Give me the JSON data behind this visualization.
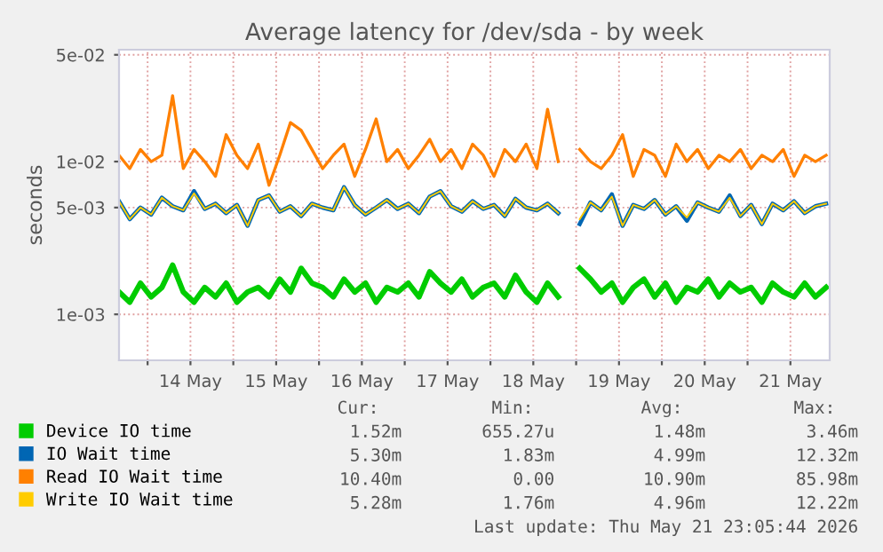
{
  "chart_data": {
    "type": "line",
    "title": "Average latency for /dev/sda - by week",
    "ylabel": "seconds",
    "log": "y",
    "ylim": [
      0.0005,
      0.054
    ],
    "yticks": [
      {
        "value": 0.05,
        "label": "5e-02"
      },
      {
        "value": 0.01,
        "label": "1e-02"
      },
      {
        "value": 0.005,
        "label": "5e-03"
      },
      {
        "value": 0.001,
        "label": "1e-03"
      }
    ],
    "xlim": [
      "2026-05-13T16:00",
      "2026-05-21T23:00"
    ],
    "xticks": [
      {
        "value": "2026-05-14T00:00",
        "label": null
      },
      {
        "value": "2026-05-14T12:00",
        "label": "14 May"
      },
      {
        "value": "2026-05-15T00:00",
        "label": null
      },
      {
        "value": "2026-05-15T12:00",
        "label": "15 May"
      },
      {
        "value": "2026-05-16T00:00",
        "label": null
      },
      {
        "value": "2026-05-16T12:00",
        "label": "16 May"
      },
      {
        "value": "2026-05-17T00:00",
        "label": null
      },
      {
        "value": "2026-05-17T12:00",
        "label": "17 May"
      },
      {
        "value": "2026-05-18T00:00",
        "label": null
      },
      {
        "value": "2026-05-18T12:00",
        "label": "18 May"
      },
      {
        "value": "2026-05-19T00:00",
        "label": null
      },
      {
        "value": "2026-05-19T12:00",
        "label": "19 May"
      },
      {
        "value": "2026-05-20T00:00",
        "label": null
      },
      {
        "value": "2026-05-20T12:00",
        "label": "20 May"
      },
      {
        "value": "2026-05-21T00:00",
        "label": null
      },
      {
        "value": "2026-05-21T12:00",
        "label": "21 May"
      }
    ],
    "x": [
      "2026-05-13T16:00",
      "2026-05-13T19:00",
      "2026-05-13T22:00",
      "2026-05-14T01:00",
      "2026-05-14T04:00",
      "2026-05-14T07:00",
      "2026-05-14T10:00",
      "2026-05-14T13:00",
      "2026-05-14T16:00",
      "2026-05-14T19:00",
      "2026-05-14T22:00",
      "2026-05-15T01:00",
      "2026-05-15T04:00",
      "2026-05-15T07:00",
      "2026-05-15T10:00",
      "2026-05-15T13:00",
      "2026-05-15T16:00",
      "2026-05-15T19:00",
      "2026-05-15T22:00",
      "2026-05-16T01:00",
      "2026-05-16T04:00",
      "2026-05-16T07:00",
      "2026-05-16T10:00",
      "2026-05-16T13:00",
      "2026-05-16T16:00",
      "2026-05-16T19:00",
      "2026-05-16T22:00",
      "2026-05-17T01:00",
      "2026-05-17T04:00",
      "2026-05-17T07:00",
      "2026-05-17T10:00",
      "2026-05-17T13:00",
      "2026-05-17T16:00",
      "2026-05-17T19:00",
      "2026-05-17T22:00",
      "2026-05-18T01:00",
      "2026-05-18T04:00",
      "2026-05-18T07:00",
      "2026-05-18T10:00",
      "2026-05-18T13:00",
      "2026-05-18T16:00",
      "2026-05-18T19:00",
      "2026-05-18T22:00",
      "2026-05-19T01:00",
      "2026-05-19T04:00",
      "2026-05-19T07:00",
      "2026-05-19T10:00",
      "2026-05-19T13:00",
      "2026-05-19T16:00",
      "2026-05-19T19:00",
      "2026-05-19T22:00",
      "2026-05-20T01:00",
      "2026-05-20T04:00",
      "2026-05-20T07:00",
      "2026-05-20T10:00",
      "2026-05-20T13:00",
      "2026-05-20T16:00",
      "2026-05-20T19:00",
      "2026-05-20T22:00",
      "2026-05-21T01:00",
      "2026-05-21T04:00",
      "2026-05-21T07:00",
      "2026-05-21T10:00",
      "2026-05-21T13:00",
      "2026-05-21T16:00",
      "2026-05-21T19:00",
      "2026-05-21T22:00"
    ],
    "series": [
      {
        "name": "Device IO time",
        "color": "#00cc00",
        "values": [
          0.0014,
          0.0012,
          0.0016,
          0.0013,
          0.0015,
          0.0021,
          0.0014,
          0.0012,
          0.0015,
          0.0013,
          0.0016,
          0.0012,
          0.0014,
          0.0015,
          0.0013,
          0.0017,
          0.0014,
          0.002,
          0.0016,
          0.0015,
          0.0013,
          0.0017,
          0.0014,
          0.0016,
          0.0012,
          0.0015,
          0.0014,
          0.0016,
          0.0013,
          0.0019,
          0.0016,
          0.0014,
          0.0017,
          0.0013,
          0.0015,
          0.0016,
          0.0013,
          0.0018,
          0.0014,
          0.0012,
          0.0016,
          0.0013,
          null,
          0.002,
          0.0017,
          0.0014,
          0.0016,
          0.0012,
          0.0015,
          0.0017,
          0.0013,
          0.0016,
          0.0012,
          0.0015,
          0.0014,
          0.0017,
          0.0013,
          0.0016,
          0.0014,
          0.0015,
          0.0012,
          0.0016,
          0.0014,
          0.0013,
          0.0016,
          0.0013,
          0.0015
        ]
      },
      {
        "name": "IO Wait time",
        "color": "#0066b3",
        "values": [
          0.0055,
          0.0042,
          0.005,
          0.0045,
          0.0058,
          0.0051,
          0.0048,
          0.0064,
          0.0049,
          0.0053,
          0.0046,
          0.0052,
          0.0038,
          0.0056,
          0.006,
          0.0047,
          0.0051,
          0.0044,
          0.0053,
          0.005,
          0.0048,
          0.0068,
          0.0052,
          0.0045,
          0.005,
          0.0056,
          0.0049,
          0.0053,
          0.0046,
          0.0059,
          0.0064,
          0.0051,
          0.0047,
          0.0055,
          0.0049,
          0.0052,
          0.0044,
          0.0057,
          0.005,
          0.0048,
          0.0053,
          0.0046,
          null,
          0.0039,
          0.0054,
          0.0048,
          0.0061,
          0.0038,
          0.0052,
          0.0049,
          0.0056,
          0.0045,
          0.0051,
          0.0041,
          0.0054,
          0.005,
          0.0047,
          0.006,
          0.0044,
          0.0052,
          0.0039,
          0.0053,
          0.0048,
          0.0055,
          0.0046,
          0.0051,
          0.0053
        ]
      },
      {
        "name": "Read IO Wait time",
        "color": "#ff8000",
        "values": [
          0.011,
          0.009,
          0.012,
          0.01,
          0.011,
          0.027,
          0.009,
          0.012,
          0.01,
          0.008,
          0.015,
          0.011,
          0.009,
          0.013,
          0.007,
          0.011,
          0.018,
          0.016,
          0.012,
          0.009,
          0.011,
          0.013,
          0.008,
          0.012,
          0.019,
          0.01,
          0.012,
          0.009,
          0.011,
          0.014,
          0.01,
          0.012,
          0.009,
          0.013,
          0.011,
          0.008,
          0.012,
          0.01,
          0.013,
          0.009,
          0.022,
          0.01,
          null,
          0.012,
          0.01,
          0.009,
          0.011,
          0.015,
          0.008,
          0.012,
          0.011,
          0.008,
          0.013,
          0.01,
          0.012,
          0.009,
          0.011,
          0.01,
          0.012,
          0.009,
          0.011,
          0.01,
          0.012,
          0.008,
          0.011,
          0.01,
          0.011
        ]
      },
      {
        "name": "Write IO Wait time",
        "color": "#ffcc00",
        "values": [
          0.0055,
          0.0042,
          0.005,
          0.0045,
          0.0058,
          0.0051,
          0.0048,
          0.0062,
          0.0049,
          0.0053,
          0.0046,
          0.0052,
          0.0038,
          0.0056,
          0.006,
          0.0047,
          0.0051,
          0.0044,
          0.0053,
          0.005,
          0.0048,
          0.0068,
          0.0052,
          0.0045,
          0.005,
          0.0056,
          0.0049,
          0.0053,
          0.0046,
          0.0059,
          0.0064,
          0.0051,
          0.0047,
          0.0055,
          0.0049,
          0.0052,
          0.0044,
          0.0057,
          0.005,
          0.0048,
          0.0053,
          0.0046,
          null,
          0.0042,
          0.0054,
          0.0048,
          0.0059,
          0.0038,
          0.0052,
          0.0049,
          0.0056,
          0.0045,
          0.0051,
          0.0043,
          0.0054,
          0.005,
          0.0047,
          0.0058,
          0.0044,
          0.0052,
          0.0039,
          0.0053,
          0.0048,
          0.0055,
          0.0046,
          0.0051,
          0.0053
        ]
      }
    ],
    "grid": true,
    "legend": "bottom",
    "marker": "none",
    "line_style": "solid",
    "annotations": [
      "Cur:",
      "Min:",
      "Avg:",
      "Max:",
      "1.52m",
      "655.27u",
      "1.48m",
      "3.46m",
      "5.30m",
      "1.83m",
      "4.99m",
      "12.32m",
      "10.40m",
      "0.00",
      "10.90m",
      "85.98m",
      "5.28m",
      "1.76m",
      "4.96m",
      "12.22m",
      "Last update: Thu May 21 23:05:44 2026"
    ]
  }
}
